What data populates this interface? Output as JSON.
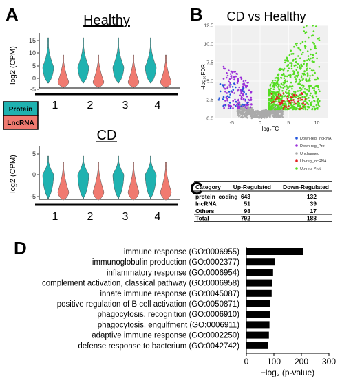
{
  "panels": {
    "A": {
      "label": "A",
      "healthy_title": "Healthy",
      "cd_title": "CD",
      "ylabel": "log2 (CPM)",
      "healthy_yticks": [
        "15",
        "10",
        "5",
        "0",
        "-5"
      ],
      "cd_yticks": [
        "5",
        "0",
        "-5"
      ],
      "groups": [
        "1",
        "2",
        "3",
        "4"
      ],
      "legend": [
        {
          "label": "Protein",
          "color": "#1fb2b0"
        },
        {
          "label": "LncRNA",
          "color": "#f07a70"
        }
      ]
    },
    "B": {
      "label": "B",
      "title": "CD vs Healthy",
      "xlabel": "log₂FC",
      "ylabel": "−log₁₀FDR",
      "xticks": [
        "-5",
        "0",
        "5",
        "10"
      ],
      "yticks": [
        "0.0",
        "2.5",
        "5.0",
        "7.5",
        "10.0",
        "12.5"
      ],
      "legend": [
        {
          "label": "Down-reg_lncRNA",
          "color": "#2255dd"
        },
        {
          "label": "Down-reg_Prot",
          "color": "#9b30d9"
        },
        {
          "label": "Unchanged",
          "color": "#aaaaaa"
        },
        {
          "label": "Up-reg_lncRNA",
          "color": "#e02020"
        },
        {
          "label": "Up-reg_Prot",
          "color": "#55dd22"
        }
      ]
    },
    "C": {
      "label": "C",
      "headers": [
        "Category",
        "Up-Regulated",
        "Down-Regulated"
      ],
      "rows": [
        [
          "protein_coding",
          "643",
          "132"
        ],
        [
          "lncRNA",
          "51",
          "39"
        ],
        [
          "Others",
          "98",
          "17"
        ],
        [
          "Total",
          "792",
          "188"
        ]
      ]
    },
    "D": {
      "label": "D"
    }
  },
  "chart_data": [
    {
      "type": "bar",
      "orientation": "horizontal",
      "categories": [
        "immune response (GO:0006955)",
        "immunoglobulin production (GO:0002377)",
        "inflammatory response (GO:0006954)",
        "complement activation, classical pathway (GO:0006958)",
        "innate immune response (GO:0045087)",
        "positive regulation of B cell activation (GO:0050871)",
        "phagocytosis, recognition (GO:0006910)",
        "phagocytosis, engulfment (GO:0006911)",
        "adaptive immune response (GO:0002250)",
        "defense response to bacterium (GO:0042742)"
      ],
      "values": [
        205,
        105,
        97,
        93,
        92,
        87,
        85,
        84,
        82,
        79
      ],
      "xlabel": "−log₂ (p-value)",
      "xlim": [
        0,
        300
      ],
      "xticks": [
        "0",
        "100",
        "200",
        "300"
      ],
      "bar_color": "#000000"
    },
    {
      "type": "scatter",
      "x_range": [
        -8,
        12
      ],
      "y_range": [
        0,
        12.5
      ],
      "note_series": "Volcano plot; counts taken from table C",
      "groups": [
        {
          "name": "Unchanged",
          "color": "#aaaaaa",
          "count": 600
        },
        {
          "name": "Down-reg_Prot",
          "color": "#9b30d9",
          "count": 132
        },
        {
          "name": "Down-reg_lncRNA",
          "color": "#2255dd",
          "count": 39
        },
        {
          "name": "Up-reg_Prot",
          "color": "#55dd22",
          "count": 643
        },
        {
          "name": "Up-reg_lncRNA",
          "color": "#e02020",
          "count": 51
        }
      ]
    }
  ]
}
